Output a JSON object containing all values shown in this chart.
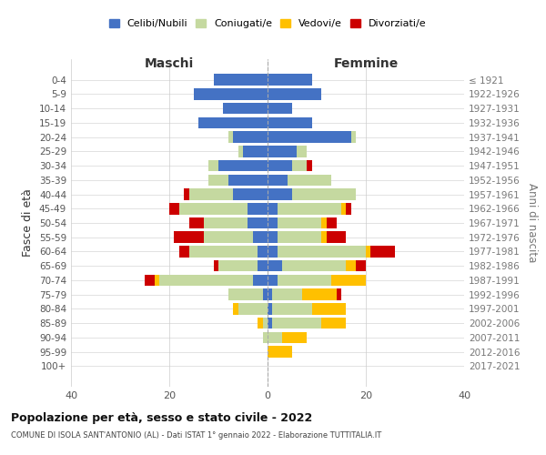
{
  "age_groups": [
    "0-4",
    "5-9",
    "10-14",
    "15-19",
    "20-24",
    "25-29",
    "30-34",
    "35-39",
    "40-44",
    "45-49",
    "50-54",
    "55-59",
    "60-64",
    "65-69",
    "70-74",
    "75-79",
    "80-84",
    "85-89",
    "90-94",
    "95-99",
    "100+"
  ],
  "birth_years": [
    "2017-2021",
    "2012-2016",
    "2007-2011",
    "2002-2006",
    "1997-2001",
    "1992-1996",
    "1987-1991",
    "1982-1986",
    "1977-1981",
    "1972-1976",
    "1967-1971",
    "1962-1966",
    "1957-1961",
    "1952-1956",
    "1947-1951",
    "1942-1946",
    "1937-1941",
    "1932-1936",
    "1927-1931",
    "1922-1926",
    "≤ 1921"
  ],
  "colors": {
    "celibi": "#4472c4",
    "coniugati": "#c5d9a0",
    "vedovi": "#ffc000",
    "divorziati": "#cc0000"
  },
  "males": {
    "celibi": [
      11,
      15,
      9,
      14,
      7,
      5,
      10,
      8,
      7,
      4,
      4,
      3,
      2,
      2,
      3,
      1,
      0,
      0,
      0,
      0,
      0
    ],
    "coniugati": [
      0,
      0,
      0,
      0,
      1,
      1,
      2,
      4,
      9,
      14,
      9,
      10,
      14,
      8,
      19,
      7,
      6,
      1,
      1,
      0,
      0
    ],
    "vedovi": [
      0,
      0,
      0,
      0,
      0,
      0,
      0,
      0,
      0,
      0,
      0,
      0,
      0,
      0,
      1,
      0,
      1,
      1,
      0,
      0,
      0
    ],
    "divorziati": [
      0,
      0,
      0,
      0,
      0,
      0,
      0,
      0,
      1,
      2,
      3,
      6,
      2,
      1,
      2,
      0,
      0,
      0,
      0,
      0,
      0
    ]
  },
  "females": {
    "nubili": [
      9,
      11,
      5,
      9,
      17,
      6,
      5,
      4,
      5,
      2,
      2,
      2,
      2,
      3,
      2,
      1,
      1,
      1,
      0,
      0,
      0
    ],
    "coniugati": [
      0,
      0,
      0,
      0,
      1,
      2,
      3,
      9,
      13,
      13,
      9,
      9,
      18,
      13,
      11,
      6,
      8,
      10,
      3,
      0,
      0
    ],
    "vedovi": [
      0,
      0,
      0,
      0,
      0,
      0,
      0,
      0,
      0,
      1,
      1,
      1,
      1,
      2,
      7,
      7,
      7,
      5,
      5,
      5,
      0
    ],
    "divorziati": [
      0,
      0,
      0,
      0,
      0,
      0,
      1,
      0,
      0,
      1,
      2,
      4,
      5,
      2,
      0,
      1,
      0,
      0,
      0,
      0,
      0
    ]
  },
  "xlim": [
    -40,
    40
  ],
  "xticks": [
    -40,
    -20,
    0,
    20,
    40
  ],
  "xticklabels": [
    "40",
    "20",
    "0",
    "20",
    "40"
  ],
  "title": "Popolazione per età, sesso e stato civile - 2022",
  "subtitle": "COMUNE DI ISOLA SANT'ANTONIO (AL) - Dati ISTAT 1° gennaio 2022 - Elaborazione TUTTITALIA.IT",
  "ylabel_left": "Fasce di età",
  "ylabel_right": "Anni di nascita",
  "label_maschi": "Maschi",
  "label_femmine": "Femmine",
  "legend_labels": [
    "Celibi/Nubili",
    "Coniugati/e",
    "Vedovi/e",
    "Divorziati/e"
  ],
  "bar_height": 0.8,
  "background_color": "#ffffff",
  "grid_color": "#cccccc"
}
